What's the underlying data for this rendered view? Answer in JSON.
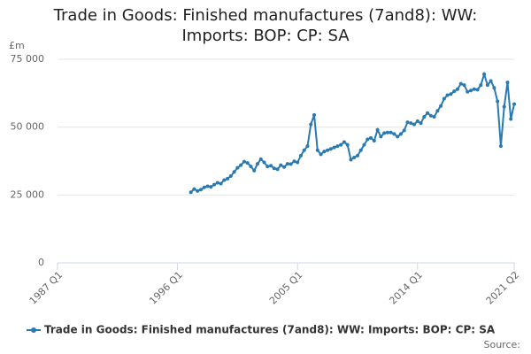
{
  "chart_data": {
    "type": "line",
    "title": "Trade in Goods: Finished manufactures (7and8): WW: Imports: BOP: CP: SA",
    "y_label": "£m",
    "source": "Source:",
    "categories": [
      "1987 Q1",
      null,
      null,
      null,
      null,
      null,
      null,
      null,
      null,
      null,
      null,
      null,
      null,
      null,
      null,
      null,
      null,
      null,
      null,
      null,
      null,
      null,
      null,
      null,
      null,
      null,
      null,
      null,
      null,
      null,
      null,
      null,
      null,
      null,
      null,
      null,
      "1996 Q1",
      null,
      null,
      null,
      null,
      null,
      null,
      null,
      null,
      null,
      null,
      null,
      null,
      null,
      null,
      null,
      null,
      null,
      null,
      null,
      null,
      null,
      null,
      null,
      null,
      null,
      null,
      null,
      null,
      null,
      null,
      null,
      null,
      null,
      null,
      null,
      "2005 Q1",
      null,
      null,
      null,
      null,
      null,
      null,
      null,
      null,
      null,
      null,
      null,
      null,
      null,
      null,
      null,
      null,
      null,
      null,
      null,
      null,
      null,
      null,
      null,
      null,
      null,
      null,
      null,
      null,
      null,
      null,
      null,
      null,
      null,
      null,
      null,
      "2014 Q1",
      null,
      null,
      null,
      null,
      null,
      null,
      null,
      null,
      null,
      null,
      null,
      null,
      null,
      null,
      null,
      null,
      null,
      null,
      null,
      null,
      null,
      null,
      null,
      null,
      null,
      null,
      null,
      null,
      "2021 Q2"
    ],
    "series": [
      {
        "name": "Trade in Goods: Finished manufactures (7and8): WW: Imports: BOP: CP: SA",
        "color": "#2a7ab0",
        "values": [
          null,
          null,
          null,
          null,
          null,
          null,
          null,
          null,
          null,
          null,
          null,
          null,
          null,
          null,
          null,
          null,
          null,
          null,
          null,
          null,
          null,
          null,
          null,
          null,
          null,
          null,
          null,
          null,
          null,
          null,
          null,
          null,
          null,
          null,
          null,
          null,
          null,
          null,
          null,
          null,
          26000,
          27200,
          26500,
          27000,
          27800,
          28200,
          28000,
          28800,
          29500,
          29200,
          30500,
          31000,
          32000,
          33500,
          35000,
          36000,
          37300,
          36800,
          35500,
          34000,
          36500,
          38200,
          37000,
          35500,
          35800,
          34800,
          34500,
          36000,
          35300,
          36500,
          36400,
          37400,
          37000,
          39500,
          41500,
          43000,
          51000,
          54500,
          41500,
          40000,
          41000,
          41500,
          42000,
          42500,
          43000,
          43500,
          44500,
          43500,
          38000,
          38800,
          39500,
          41500,
          43500,
          45500,
          46000,
          45000,
          49000,
          46500,
          47800,
          48000,
          48000,
          47500,
          46500,
          47500,
          48800,
          51800,
          51500,
          51000,
          52200,
          51500,
          53800,
          55200,
          54200,
          53800,
          56000,
          57800,
          60500,
          61800,
          62200,
          63200,
          64000,
          66000,
          65500,
          63000,
          63500,
          64000,
          63800,
          65500,
          69500,
          65500,
          67000,
          64500,
          59500,
          43000,
          57500,
          66500,
          53000,
          58500
        ]
      }
    ],
    "ylim": [
      0,
      75000
    ],
    "yticks": [
      0,
      {
        "value": 25000,
        "label": "25 000"
      },
      {
        "value": 50000,
        "label": "50 000"
      },
      {
        "value": 75000,
        "label": "75 000"
      }
    ],
    "grid": true,
    "legend": "bottom"
  }
}
